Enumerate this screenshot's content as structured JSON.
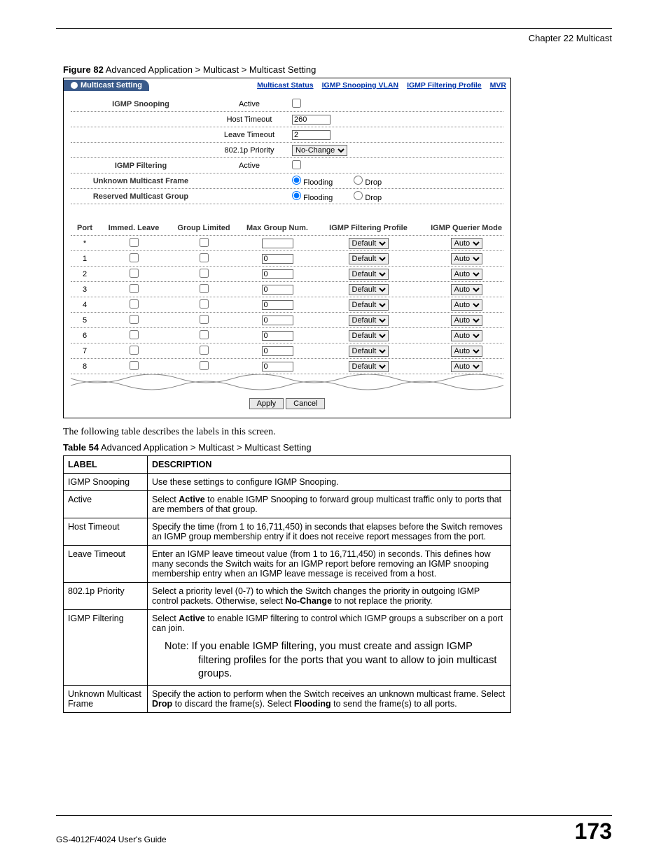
{
  "header": {
    "chapter": "Chapter 22 Multicast"
  },
  "figure": {
    "caption_bold": "Figure 82",
    "caption_rest": "   Advanced Application > Multicast > Multicast Setting",
    "tab_title": "Multicast Setting",
    "links": {
      "status": "Multicast Status",
      "vlan": "IGMP Snooping VLAN",
      "profile": "IGMP Filtering Profile",
      "mvr": "MVR"
    },
    "labels": {
      "snooping": "IGMP Snooping",
      "filtering": "IGMP Filtering",
      "unknown": "Unknown Multicast Frame",
      "reserved": "Reserved Multicast Group",
      "active": "Active",
      "host_timeout": "Host Timeout",
      "leave_timeout": "Leave Timeout",
      "priority": "802.1p Priority",
      "flooding": "Flooding",
      "drop": "Drop"
    },
    "values": {
      "host_timeout": "260",
      "leave_timeout": "2",
      "priority": "No-Change"
    },
    "port_headers": {
      "port": "Port",
      "immed": "Immed. Leave",
      "group": "Group Limited",
      "max": "Max Group Num.",
      "profile": "IGMP Filtering Profile",
      "querier": "IGMP Querier Mode"
    },
    "port_rows": [
      {
        "port": "*",
        "max": "",
        "profile": "Default",
        "querier": "Auto"
      },
      {
        "port": "1",
        "max": "0",
        "profile": "Default",
        "querier": "Auto"
      },
      {
        "port": "2",
        "max": "0",
        "profile": "Default",
        "querier": "Auto"
      },
      {
        "port": "3",
        "max": "0",
        "profile": "Default",
        "querier": "Auto"
      },
      {
        "port": "4",
        "max": "0",
        "profile": "Default",
        "querier": "Auto"
      },
      {
        "port": "5",
        "max": "0",
        "profile": "Default",
        "querier": "Auto"
      },
      {
        "port": "6",
        "max": "0",
        "profile": "Default",
        "querier": "Auto"
      },
      {
        "port": "7",
        "max": "0",
        "profile": "Default",
        "querier": "Auto"
      },
      {
        "port": "8",
        "max": "0",
        "profile": "Default",
        "querier": "Auto"
      }
    ],
    "buttons": {
      "apply": "Apply",
      "cancel": "Cancel"
    }
  },
  "body_text": "The following table describes the labels in this screen.",
  "table": {
    "caption_bold": "Table 54",
    "caption_rest": "   Advanced Application > Multicast > Multicast Setting",
    "head_label": "LABEL",
    "head_desc": "DESCRIPTION",
    "rows": [
      {
        "label": "IGMP Snooping",
        "desc": "Use these settings to configure IGMP Snooping."
      },
      {
        "label": "Active",
        "desc": "Select Active to enable IGMP Snooping to forward group multicast traffic only to ports that are members of that group."
      },
      {
        "label": "Host Timeout",
        "desc": "Specify the time (from 1 to 16,711,450) in seconds that elapses before the Switch removes an IGMP group membership entry if it does not receive report messages from the port."
      },
      {
        "label": "Leave Timeout",
        "desc": "Enter an IGMP leave timeout value (from 1 to 16,711,450) in seconds. This defines how many seconds the Switch waits for an IGMP report before removing an IGMP snooping membership entry when an IGMP leave message is received from a host."
      },
      {
        "label": "802.1p Priority",
        "desc": "Select a priority level (0-7) to which the Switch changes the priority in outgoing IGMP control packets. Otherwise, select No-Change to not replace the priority."
      },
      {
        "label": "IGMP Filtering",
        "desc": "Select Active to enable IGMP filtering to control which IGMP groups a subscriber on a port can join.",
        "note": "Note: If you enable IGMP filtering, you must create and assign IGMP filtering profiles for the ports that you want to allow to join multicast groups."
      },
      {
        "label": "Unknown Multicast Frame",
        "desc": "Specify the action to perform when the Switch receives an unknown multicast frame. Select Drop to discard the frame(s). Select Flooding to send the frame(s) to all ports."
      }
    ]
  },
  "footer": {
    "guide": "GS-4012F/4024 User's Guide",
    "page": "173"
  }
}
